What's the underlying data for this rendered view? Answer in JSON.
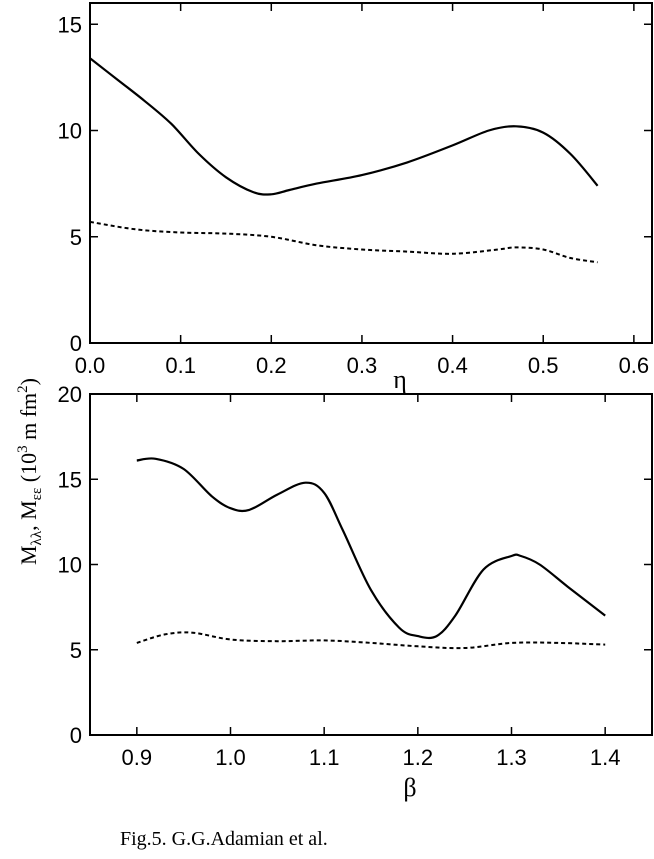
{
  "caption": "Fig.5. G.G.Adamian et al.",
  "ylabel": {
    "m1": "M",
    "s1": "λλ",
    "sep": ", M",
    "s2": "εε",
    "u1": " (10",
    "e1": "3",
    "u2": " m fm",
    "e2": "2",
    "u3": ")"
  },
  "chart_data": [
    {
      "type": "line",
      "title": "",
      "xlabel": "η",
      "ylabel": "",
      "xlim": [
        0.0,
        0.62
      ],
      "ylim": [
        0,
        16
      ],
      "xticks": [
        "0.0",
        "0.1",
        "0.2",
        "0.3",
        "0.4",
        "0.5",
        "0.6"
      ],
      "yticks": [
        "0",
        "5",
        "10",
        "15"
      ],
      "series": [
        {
          "style": "solid",
          "x": [
            0.0,
            0.03,
            0.06,
            0.09,
            0.12,
            0.15,
            0.18,
            0.2,
            0.22,
            0.25,
            0.3,
            0.35,
            0.4,
            0.44,
            0.47,
            0.5,
            0.53,
            0.56
          ],
          "values": [
            13.4,
            12.4,
            11.4,
            10.3,
            8.9,
            7.8,
            7.1,
            7.0,
            7.2,
            7.5,
            7.9,
            8.5,
            9.3,
            10.0,
            10.2,
            9.9,
            8.9,
            7.4
          ]
        },
        {
          "style": "dashed",
          "x": [
            0.0,
            0.05,
            0.1,
            0.15,
            0.2,
            0.25,
            0.3,
            0.35,
            0.4,
            0.45,
            0.47,
            0.5,
            0.53,
            0.56
          ],
          "values": [
            5.7,
            5.35,
            5.2,
            5.15,
            5.0,
            4.6,
            4.4,
            4.3,
            4.2,
            4.4,
            4.5,
            4.4,
            4.0,
            3.8
          ]
        }
      ]
    },
    {
      "type": "line",
      "title": "",
      "xlabel": "β",
      "ylabel": "",
      "xlim": [
        0.85,
        1.45
      ],
      "ylim": [
        0,
        20
      ],
      "xticks": [
        "0.9",
        "1.0",
        "1.1",
        "1.2",
        "1.3",
        "1.4"
      ],
      "yticks": [
        "0",
        "5",
        "10",
        "15",
        "20"
      ],
      "series": [
        {
          "style": "solid",
          "x": [
            0.9,
            0.92,
            0.95,
            0.98,
            1.0,
            1.02,
            1.05,
            1.08,
            1.1,
            1.12,
            1.15,
            1.18,
            1.2,
            1.22,
            1.24,
            1.27,
            1.3,
            1.31,
            1.33,
            1.36,
            1.4
          ],
          "values": [
            16.1,
            16.2,
            15.6,
            14.0,
            13.3,
            13.2,
            14.1,
            14.8,
            14.2,
            12.0,
            8.5,
            6.3,
            5.8,
            5.8,
            7.0,
            9.7,
            10.5,
            10.5,
            10.0,
            8.7,
            7.0
          ]
        },
        {
          "style": "dashed",
          "x": [
            0.9,
            0.93,
            0.96,
            1.0,
            1.05,
            1.1,
            1.15,
            1.2,
            1.25,
            1.3,
            1.35,
            1.4
          ],
          "values": [
            5.4,
            5.9,
            6.0,
            5.6,
            5.5,
            5.55,
            5.4,
            5.2,
            5.1,
            5.4,
            5.4,
            5.3
          ]
        }
      ]
    }
  ]
}
